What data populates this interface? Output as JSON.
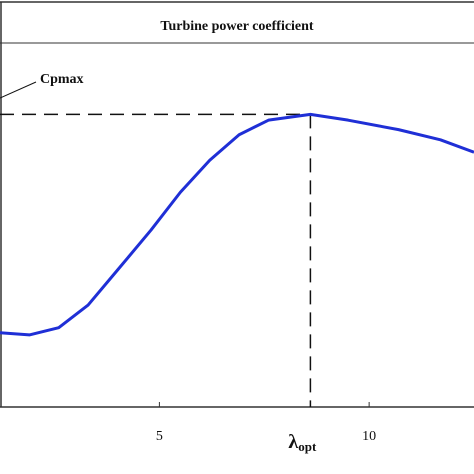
{
  "chart_data": {
    "type": "line",
    "title": "Turbine power coefficient",
    "x": [
      1.2,
      1.9,
      2.6,
      3.3,
      4.0,
      4.8,
      5.5,
      6.2,
      6.9,
      7.6,
      8.6,
      9.5,
      10.7,
      11.7,
      12.5
    ],
    "series": [
      {
        "color": "#1f2fd6",
        "values": [
          0.102,
          0.099,
          0.109,
          0.14,
          0.188,
          0.243,
          0.295,
          0.339,
          0.374,
          0.394,
          0.402,
          0.394,
          0.381,
          0.367,
          0.35
        ]
      }
    ],
    "xlim": [
      1.2,
      12.5
    ],
    "ylim": [
      0,
      0.5
    ],
    "xticks": [
      5,
      10
    ],
    "peak_label": "Cpmax",
    "peak_x_label": "λ",
    "peak_x_label_sub": "opt"
  }
}
